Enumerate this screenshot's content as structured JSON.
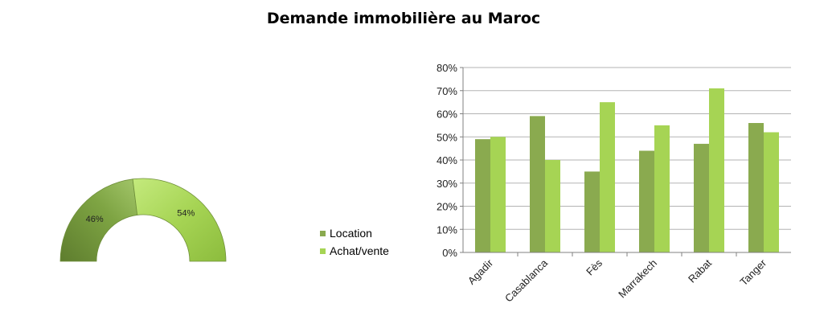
{
  "title": "Demande immobilière au Maroc",
  "colors": {
    "location": "#8aaa4f",
    "achat": "#a6d454",
    "axis": "#808080",
    "grid": "#b3b3b3"
  },
  "chart_data": [
    {
      "type": "pie",
      "subtype": "half-donut",
      "slices": [
        {
          "name": "Location",
          "value": 46,
          "label": "46%"
        },
        {
          "name": "Achat/vente",
          "value": 54,
          "label": "54%"
        }
      ]
    },
    {
      "type": "bar",
      "categories": [
        "Agadir",
        "Casablanca",
        "Fès",
        "Marrakech",
        "Rabat",
        "Tanger"
      ],
      "series": [
        {
          "name": "Location",
          "values": [
            49,
            59,
            35,
            44,
            47,
            56
          ]
        },
        {
          "name": "Achat/vente",
          "values": [
            50,
            40,
            65,
            55,
            71,
            52
          ]
        }
      ],
      "ylim": [
        0,
        80
      ],
      "yticks": [
        "0%",
        "10%",
        "20%",
        "30%",
        "40%",
        "50%",
        "60%",
        "70%",
        "80%"
      ],
      "grid": true,
      "legend": {
        "position": "left",
        "items": [
          "Location",
          "Achat/vente"
        ]
      }
    }
  ]
}
